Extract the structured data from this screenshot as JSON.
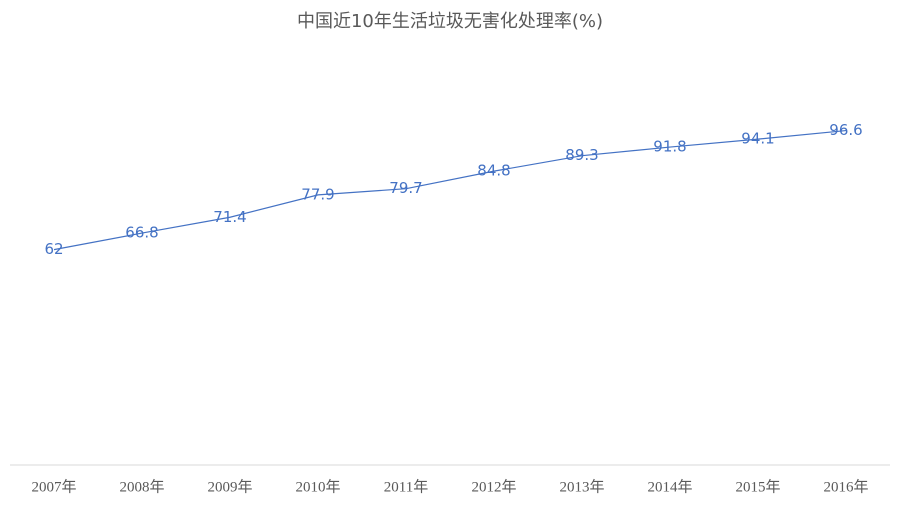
{
  "chart_data": {
    "type": "line",
    "title": "中国近10年生活垃圾无害化处理率(%)",
    "categories": [
      "2007年",
      "2008年",
      "2009年",
      "2010年",
      "2011年",
      "2012年",
      "2013年",
      "2014年",
      "2015年",
      "2016年"
    ],
    "values": [
      62,
      66.8,
      71.4,
      77.9,
      79.7,
      84.8,
      89.3,
      91.8,
      94.1,
      96.6
    ],
    "color": "#4472c4",
    "ylim": [
      0,
      120
    ],
    "grid": false,
    "data_labels": true
  }
}
